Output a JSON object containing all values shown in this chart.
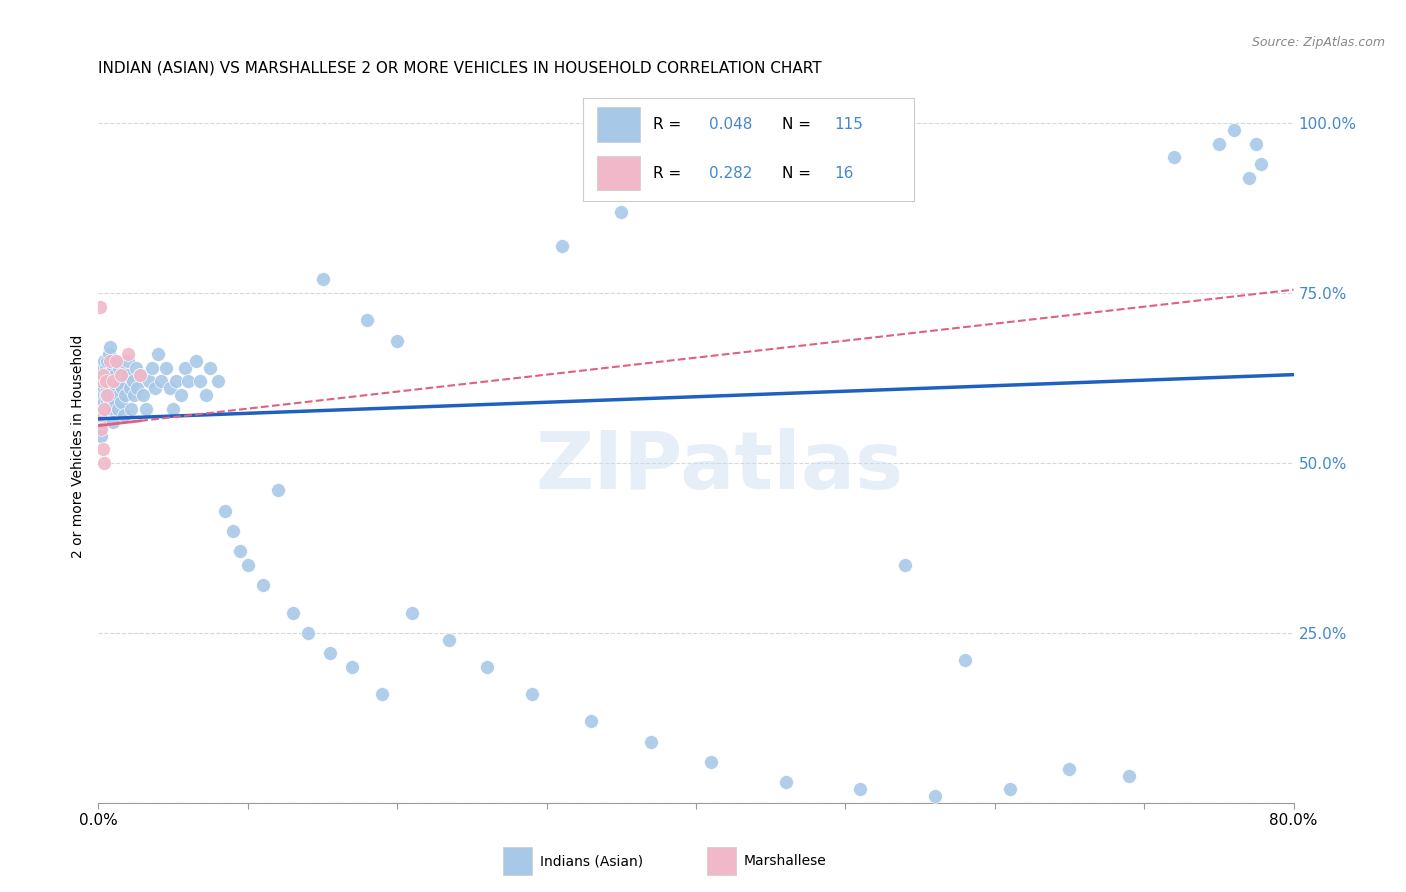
{
  "title": "INDIAN (ASIAN) VS MARSHALLESE 2 OR MORE VEHICLES IN HOUSEHOLD CORRELATION CHART",
  "source": "Source: ZipAtlas.com",
  "ylabel": "2 or more Vehicles in Household",
  "xlim": [
    0.0,
    0.8
  ],
  "ylim": [
    0.0,
    1.05
  ],
  "watermark": "ZIPatlas",
  "indian_color": "#a8c8e8",
  "marshallese_color": "#f0b8c8",
  "trend_indian_color": "#2060c0",
  "trend_marshallese_color": "#e06080",
  "background_color": "#ffffff",
  "grid_color": "#d8d8d8",
  "axis_label_color": "#4488cc",
  "title_fontsize": 11,
  "indian_x": [
    0.001,
    0.001,
    0.001,
    0.001,
    0.002,
    0.002,
    0.002,
    0.002,
    0.002,
    0.003,
    0.003,
    0.003,
    0.003,
    0.003,
    0.004,
    0.004,
    0.004,
    0.004,
    0.005,
    0.005,
    0.005,
    0.005,
    0.006,
    0.006,
    0.006,
    0.006,
    0.007,
    0.007,
    0.007,
    0.008,
    0.008,
    0.008,
    0.009,
    0.009,
    0.01,
    0.01,
    0.01,
    0.011,
    0.011,
    0.012,
    0.012,
    0.013,
    0.013,
    0.014,
    0.014,
    0.015,
    0.015,
    0.016,
    0.017,
    0.018,
    0.019,
    0.02,
    0.021,
    0.022,
    0.023,
    0.024,
    0.025,
    0.026,
    0.028,
    0.03,
    0.032,
    0.034,
    0.036,
    0.038,
    0.04,
    0.042,
    0.045,
    0.048,
    0.05,
    0.052,
    0.055,
    0.058,
    0.06,
    0.065,
    0.068,
    0.072,
    0.075,
    0.08,
    0.085,
    0.09,
    0.095,
    0.1,
    0.11,
    0.12,
    0.13,
    0.14,
    0.155,
    0.17,
    0.19,
    0.21,
    0.235,
    0.26,
    0.29,
    0.33,
    0.37,
    0.41,
    0.46,
    0.51,
    0.56,
    0.61,
    0.65,
    0.69,
    0.72,
    0.75,
    0.76,
    0.77,
    0.775,
    0.778,
    0.54,
    0.58,
    0.31,
    0.35,
    0.15,
    0.18,
    0.2
  ],
  "indian_y": [
    0.58,
    0.6,
    0.62,
    0.55,
    0.59,
    0.63,
    0.57,
    0.61,
    0.54,
    0.6,
    0.64,
    0.58,
    0.62,
    0.56,
    0.61,
    0.65,
    0.59,
    0.63,
    0.6,
    0.64,
    0.58,
    0.62,
    0.61,
    0.65,
    0.59,
    0.63,
    0.62,
    0.66,
    0.6,
    0.63,
    0.59,
    0.67,
    0.62,
    0.58,
    0.64,
    0.6,
    0.56,
    0.63,
    0.59,
    0.61,
    0.65,
    0.62,
    0.58,
    0.64,
    0.6,
    0.63,
    0.59,
    0.61,
    0.57,
    0.6,
    0.63,
    0.65,
    0.61,
    0.58,
    0.62,
    0.6,
    0.64,
    0.61,
    0.63,
    0.6,
    0.58,
    0.62,
    0.64,
    0.61,
    0.66,
    0.62,
    0.64,
    0.61,
    0.58,
    0.62,
    0.6,
    0.64,
    0.62,
    0.65,
    0.62,
    0.6,
    0.64,
    0.62,
    0.43,
    0.4,
    0.37,
    0.35,
    0.32,
    0.46,
    0.28,
    0.25,
    0.22,
    0.2,
    0.16,
    0.28,
    0.24,
    0.2,
    0.16,
    0.12,
    0.09,
    0.06,
    0.03,
    0.02,
    0.01,
    0.02,
    0.05,
    0.04,
    0.95,
    0.97,
    0.99,
    0.92,
    0.97,
    0.94,
    0.35,
    0.21,
    0.82,
    0.87,
    0.77,
    0.71,
    0.68
  ],
  "marshallese_x": [
    0.001,
    0.001,
    0.002,
    0.002,
    0.003,
    0.003,
    0.004,
    0.004,
    0.005,
    0.006,
    0.008,
    0.01,
    0.012,
    0.015,
    0.02,
    0.028
  ],
  "marshallese_y": [
    0.73,
    0.57,
    0.62,
    0.55,
    0.63,
    0.52,
    0.58,
    0.5,
    0.62,
    0.6,
    0.65,
    0.62,
    0.65,
    0.63,
    0.66,
    0.63
  ],
  "indian_trend_x0": 0.0,
  "indian_trend_y0": 0.565,
  "indian_trend_x1": 0.8,
  "indian_trend_y1": 0.63,
  "marsh_trend_x0": 0.0,
  "marsh_trend_y0": 0.555,
  "marsh_trend_x1": 0.8,
  "marsh_trend_y1": 0.755
}
